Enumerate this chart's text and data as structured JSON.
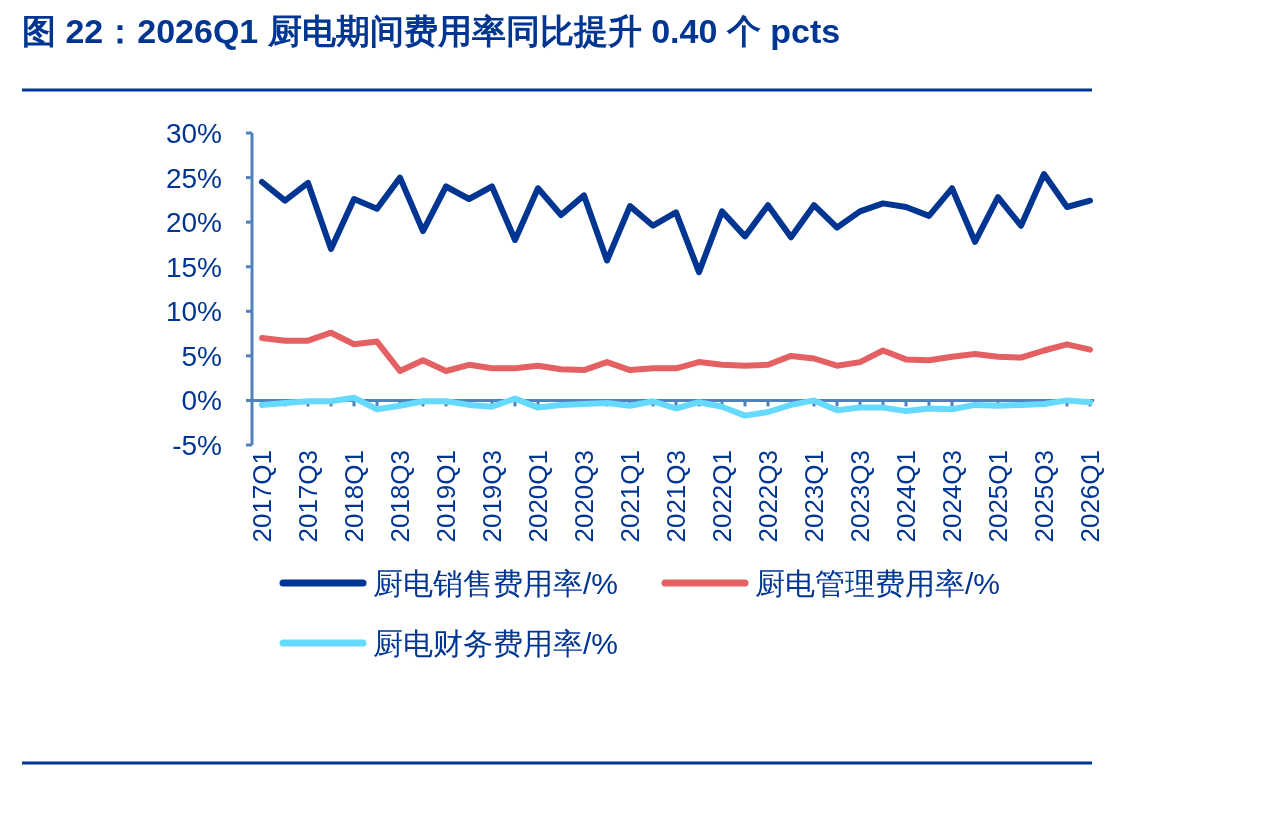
{
  "chart_data": {
    "type": "line",
    "title": "图 22：2026Q1 厨电期间费用率同比提升 0.40 个 pcts",
    "categories": [
      "2017Q1",
      null,
      "2017Q3",
      null,
      "2018Q1",
      null,
      "2018Q3",
      null,
      "2019Q1",
      null,
      "2019Q3",
      null,
      "2020Q1",
      null,
      "2020Q3",
      null,
      "2021Q1",
      null,
      "2021Q3",
      null,
      "2022Q1",
      null,
      "2022Q3",
      null,
      "2023Q1",
      null,
      "2023Q3",
      null,
      "2024Q1",
      null,
      "2024Q3",
      null,
      "2025Q1",
      null,
      "2025Q3",
      null,
      "2026Q1"
    ],
    "series": [
      {
        "name": "厨电销售费用率/%",
        "color": "#003591",
        "values": [
          24.5,
          22.4,
          24.4,
          17.0,
          22.6,
          21.5,
          25.0,
          19.0,
          24.0,
          22.6,
          24.0,
          18.0,
          23.8,
          20.8,
          23.0,
          15.7,
          21.8,
          19.6,
          21.1,
          14.4,
          21.2,
          18.4,
          21.9,
          18.3,
          21.9,
          19.4,
          21.2,
          22.1,
          21.7,
          20.7,
          23.8,
          17.8,
          22.8,
          19.6,
          25.4,
          21.7,
          22.4
        ]
      },
      {
        "name": "厨电管理费用率/%",
        "color": "#e46062",
        "values": [
          7.0,
          6.7,
          6.7,
          7.6,
          6.3,
          6.6,
          3.3,
          4.5,
          3.3,
          4.0,
          3.6,
          3.6,
          3.9,
          3.5,
          3.4,
          4.3,
          3.4,
          3.6,
          3.6,
          4.3,
          4.0,
          3.9,
          4.0,
          5.0,
          4.7,
          3.9,
          4.3,
          5.6,
          4.6,
          4.5,
          4.9,
          5.2,
          4.9,
          4.8,
          5.6,
          6.3,
          5.7
        ]
      },
      {
        "name": "厨电财务费用率/%",
        "color": "#66d9ff",
        "values": [
          -0.5,
          -0.3,
          -0.1,
          -0.1,
          0.3,
          -1.0,
          -0.6,
          -0.1,
          -0.1,
          -0.5,
          -0.7,
          0.2,
          -0.8,
          -0.5,
          -0.4,
          -0.3,
          -0.6,
          -0.1,
          -0.9,
          -0.2,
          -0.7,
          -1.7,
          -1.3,
          -0.5,
          0.0,
          -1.1,
          -0.8,
          -0.8,
          -1.2,
          -0.9,
          -1.0,
          -0.5,
          -0.6,
          -0.5,
          -0.4,
          0.0,
          -0.2
        ]
      }
    ],
    "ylim": [
      -5,
      30
    ],
    "yticks": [
      {
        "value": -5,
        "label": "-5%"
      },
      {
        "value": 0,
        "label": "0%"
      },
      {
        "value": 5,
        "label": "5%"
      },
      {
        "value": 10,
        "label": "10%"
      },
      {
        "value": 15,
        "label": "15%"
      },
      {
        "value": 20,
        "label": "20%"
      },
      {
        "value": 25,
        "label": "25%"
      },
      {
        "value": 30,
        "label": "30%"
      }
    ],
    "legend": "bottom",
    "grid": false,
    "marker": "none",
    "line_style": "solid"
  }
}
